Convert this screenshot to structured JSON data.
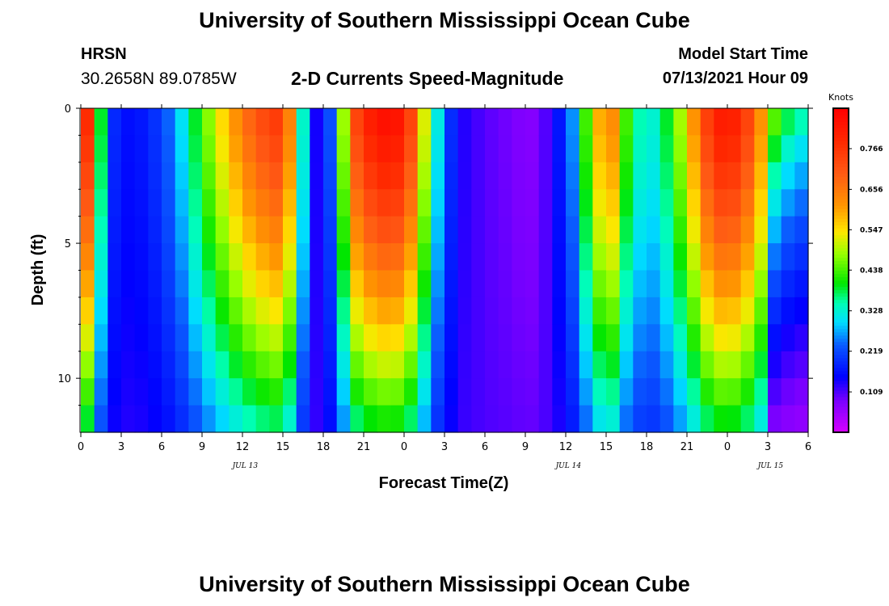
{
  "header": {
    "title": "University of Southern Mississippi Ocean Cube",
    "station": "HRSN",
    "coordinates": "30.2658N  89.0785W",
    "subtitle": "2-D Currents Speed-Magnitude",
    "model_label": "Model Start Time",
    "model_time": "07/13/2021 Hour 09"
  },
  "footer": {
    "title": "University of Southern Mississippi Ocean Cube"
  },
  "chart_data": {
    "type": "heatmap",
    "xlabel": "Forecast Time(Z)",
    "ylabel": "Depth (ft)",
    "xlim": [
      0,
      54
    ],
    "ylim": [
      0,
      12
    ],
    "x_ticks": [
      {
        "x": 0,
        "label": "0"
      },
      {
        "x": 3,
        "label": "3"
      },
      {
        "x": 6,
        "label": "6"
      },
      {
        "x": 9,
        "label": "9"
      },
      {
        "x": 12,
        "label": "12"
      },
      {
        "x": 15,
        "label": "15"
      },
      {
        "x": 18,
        "label": "18"
      },
      {
        "x": 21,
        "label": "21"
      },
      {
        "x": 24,
        "label": "0"
      },
      {
        "x": 27,
        "label": "3"
      },
      {
        "x": 30,
        "label": "6"
      },
      {
        "x": 33,
        "label": "9"
      },
      {
        "x": 36,
        "label": "12"
      },
      {
        "x": 39,
        "label": "15"
      },
      {
        "x": 42,
        "label": "18"
      },
      {
        "x": 45,
        "label": "21"
      },
      {
        "x": 48,
        "label": "0"
      },
      {
        "x": 51,
        "label": "3"
      },
      {
        "x": 54,
        "label": "6"
      }
    ],
    "date_labels": [
      {
        "x": 12.2,
        "label": "JUL 13"
      },
      {
        "x": 36.2,
        "label": "JUL 14"
      },
      {
        "x": 51.2,
        "label": "JUL 15"
      }
    ],
    "y_ticks": [
      {
        "y": 0,
        "label": "0"
      },
      {
        "y": 5,
        "label": "5"
      },
      {
        "y": 10,
        "label": "10"
      }
    ],
    "y_minor_ticks": [
      1,
      2,
      3,
      4,
      6,
      7,
      8,
      9,
      11
    ],
    "colorbar": {
      "unit": "Knots",
      "range": [
        0.0,
        0.875
      ],
      "ticks": [
        0.109,
        0.219,
        0.328,
        0.438,
        0.547,
        0.656,
        0.766
      ],
      "tick_labels": [
        "0.109",
        "0.219",
        "0.328",
        "0.438",
        "0.547",
        "0.656",
        "0.766"
      ]
    },
    "grid": {
      "n_time_steps": 54,
      "n_depth_levels": 12,
      "note": "speed (knots) = profile(hour) * depth_factor(depth); surface-intensified fast bands near hours 0-1, 7-16 (strongest 13-16), 20-25, 34-40, 46-51; minima near hours 2, 17-18, 28-33 (lowest ~hour 33 at depth), 42"
    }
  }
}
